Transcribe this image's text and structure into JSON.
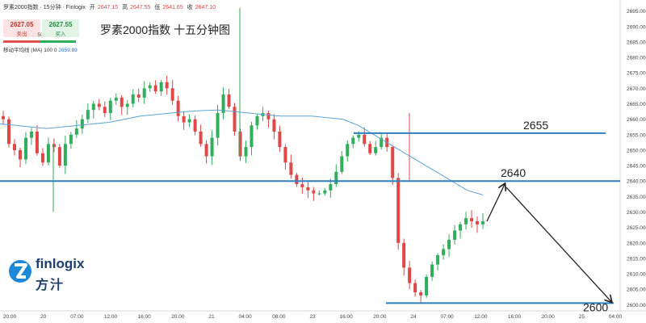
{
  "header": {
    "symbol": "罗素2000指数 · 15分钟 · Finlogix",
    "open_label": "开",
    "open": "2647.15",
    "high_label": "高",
    "high": "2647.55",
    "low_label": "低",
    "low": "2641.65",
    "close_label": "收",
    "close": "2647.10",
    "sell_price": "2627.05",
    "sell_label": "卖出",
    "buy_price": "2627.55",
    "buy_label": "买入",
    "spread": "50",
    "ma_label": "移动平均线 (MA)",
    "ma_params": "100 0",
    "ma_value": "2659.89"
  },
  "chart_title": "罗素2000指数 十五分钟图",
  "logo": {
    "name": "finlogix",
    "cn": "方汁"
  },
  "colors": {
    "up": "#2fae5b",
    "down": "#e04747",
    "ma": "#5ca3d6",
    "level": "#2f7fc1",
    "arrow": "#222222"
  },
  "chart_data": {
    "type": "candlestick",
    "title": "罗素2000指数 十五分钟图",
    "y_ticks": [
      2600,
      2605,
      2610,
      2615,
      2620,
      2625,
      2630,
      2635,
      2640,
      2645,
      2650,
      2655,
      2660,
      2665,
      2670,
      2675,
      2680,
      2685,
      2690,
      2695
    ],
    "ylim": [
      2598,
      2697
    ],
    "x_ticks": [
      "20:00",
      "20",
      "07:00",
      "12:00",
      "16:00",
      "20:00",
      "21",
      "04:00",
      "08:00",
      "23",
      "16:00",
      "20:00",
      "24",
      "07:00",
      "12:00",
      "16:00",
      "20:00",
      "25",
      "04:00"
    ],
    "horizontal_levels": [
      {
        "label": "2655",
        "value": 2655.5
      },
      {
        "label": "2640",
        "value": 2640
      },
      {
        "label": "2600",
        "value": 2600.5
      }
    ],
    "candles_close_path": [
      2660,
      2652,
      2650,
      2647,
      2654,
      2656,
      2649,
      2646,
      2652,
      2651,
      2645,
      2652,
      2655,
      2657,
      2660,
      2663,
      2665,
      2664,
      2662,
      2666,
      2667,
      2664,
      2665,
      2668,
      2667,
      2670,
      2671,
      2669,
      2672,
      2670,
      2666,
      2661,
      2659,
      2660,
      2656,
      2652,
      2648,
      2654,
      2662,
      2668,
      2664,
      2656,
      2648,
      2651,
      2658,
      2661,
      2662,
      2660,
      2656,
      2651,
      2646,
      2642,
      2639,
      2638,
      2637,
      2636,
      2636,
      2637,
      2639,
      2643,
      2648,
      2652,
      2654,
      2655,
      2652,
      2649,
      2651,
      2654,
      2651,
      2641,
      2620,
      2612,
      2607,
      2604,
      2603,
      2609,
      2613,
      2616,
      2618,
      2621,
      2624,
      2626,
      2628,
      2627,
      2626,
      2627
    ],
    "ma_path": [
      2658.5,
      2658,
      2657.5,
      2657,
      2657.5,
      2658,
      2658.5,
      2659,
      2660,
      2661,
      2661.5,
      2662,
      2662.5,
      2662.8,
      2663,
      2662.5,
      2662,
      2661.5,
      2661,
      2661,
      2661,
      2660.5,
      2660,
      2658,
      2655,
      2652,
      2649,
      2646,
      2643,
      2640,
      2637,
      2635.5
    ],
    "projection": [
      {
        "x_label": "12:00",
        "y": 2627
      },
      {
        "x_label": "16:00",
        "y": 2639
      },
      {
        "x_label": "04:00",
        "y": 2601
      }
    ],
    "levels": {
      "top": 2655,
      "mid": 2640,
      "bottom": 2600
    }
  }
}
